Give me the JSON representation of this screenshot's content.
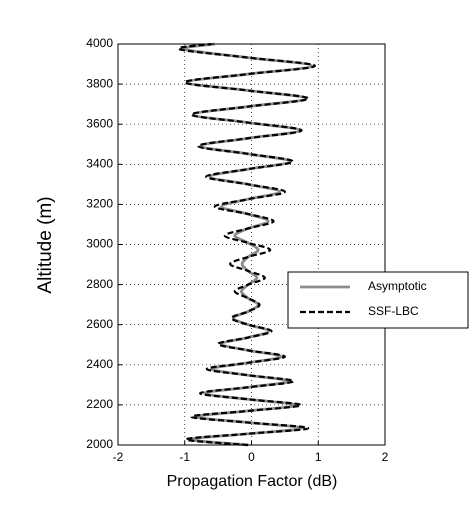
{
  "chart_data": {
    "type": "line",
    "xlabel": "Propagation Factor (dB)",
    "ylabel": "Altitude (m)",
    "y": [
      2000,
      2028,
      2056,
      2084,
      2112,
      2141,
      2170,
      2199,
      2228,
      2258,
      2288,
      2318,
      2348,
      2379,
      2410,
      2441,
      2472,
      2504,
      2536,
      2568,
      2600,
      2633,
      2666,
      2699,
      2732,
      2766,
      2800,
      2834,
      2868,
      2903,
      2938,
      2973,
      3008,
      3044,
      3080,
      3116,
      3152,
      3189,
      3226,
      3263,
      3300,
      3338,
      3376,
      3414,
      3452,
      3491,
      3530,
      3569,
      3608,
      3648,
      3688,
      3728,
      3768,
      3809,
      3850,
      3891,
      3932,
      3974,
      4000
    ],
    "series": [
      {
        "name": "Asymptotic",
        "color": "#8c8c8c",
        "dashed": false,
        "values": [
          -0.05,
          -0.9,
          -0.05,
          0.75,
          -0.05,
          -0.82,
          -0.05,
          0.66,
          -0.05,
          -0.7,
          -0.05,
          0.56,
          -0.05,
          -0.6,
          -0.05,
          0.44,
          -0.05,
          -0.45,
          -0.05,
          0.26,
          -0.05,
          -0.27,
          -0.05,
          0.1,
          -0.05,
          -0.15,
          -0.05,
          0.08,
          -0.05,
          -0.14,
          -0.05,
          0.1,
          -0.05,
          -0.25,
          -0.05,
          0.25,
          -0.05,
          -0.45,
          -0.05,
          0.42,
          -0.05,
          -0.62,
          -0.05,
          0.58,
          -0.05,
          -0.76,
          -0.05,
          0.72,
          -0.05,
          -0.87,
          -0.05,
          0.82,
          -0.05,
          -0.96,
          -0.05,
          0.9,
          -0.05,
          -1.02,
          -0.55
        ]
      },
      {
        "name": "SSF-LBC",
        "color": "#000000",
        "dashed": true,
        "values": [
          -0.05,
          -0.98,
          -0.05,
          0.85,
          -0.05,
          -0.9,
          -0.05,
          0.74,
          -0.05,
          -0.77,
          -0.05,
          0.63,
          -0.05,
          -0.67,
          -0.05,
          0.5,
          -0.05,
          -0.5,
          -0.05,
          0.3,
          -0.05,
          -0.3,
          -0.05,
          0.12,
          -0.05,
          -0.25,
          -0.05,
          0.2,
          -0.05,
          -0.32,
          -0.05,
          0.28,
          -0.05,
          -0.4,
          -0.05,
          0.33,
          -0.05,
          -0.55,
          -0.05,
          0.5,
          -0.05,
          -0.68,
          -0.05,
          0.62,
          -0.05,
          -0.8,
          -0.05,
          0.75,
          -0.05,
          -0.9,
          -0.05,
          0.85,
          -0.05,
          -1.0,
          -0.05,
          0.95,
          -0.05,
          -1.08,
          -0.6
        ]
      }
    ],
    "xlim": [
      -2,
      2
    ],
    "xticks": [
      -2,
      -1,
      0,
      1,
      2
    ],
    "ylim": [
      2000,
      4000
    ],
    "yticks": [
      2000,
      2200,
      2400,
      2600,
      2800,
      3000,
      3200,
      3400,
      3600,
      3800,
      4000
    ],
    "grid": true,
    "legend": "right"
  }
}
